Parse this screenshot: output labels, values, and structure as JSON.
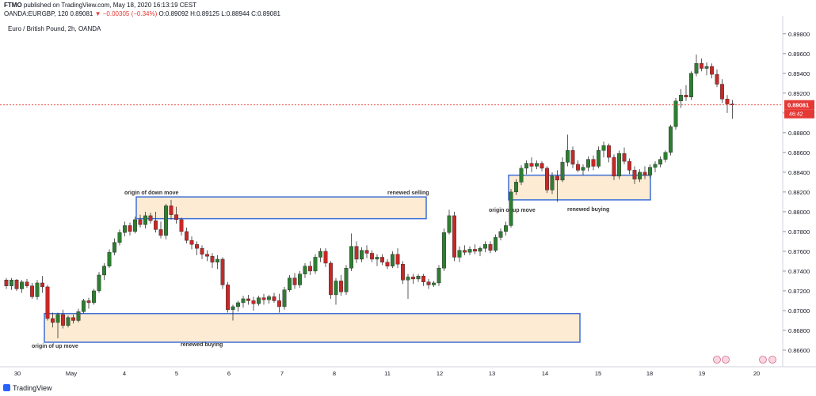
{
  "header": {
    "publisher": "FTMO",
    "published_text": "published on TradingView.com, May 18, 2020 16:13:19 CEST",
    "symbol": "OANDA:EURGBP, 120",
    "last": "0.89081",
    "change": "▼ −0.00305 (−0.34%)",
    "o": "O:0.89092",
    "h": "H:0.89125",
    "l": "L:0.88944",
    "c": "C:0.89081"
  },
  "pane_title": "Euro / British Pound, 2h, OANDA",
  "price_label": "0.89081",
  "countdown_label": "46:42",
  "logo_text": "TradingView",
  "colors": {
    "up": "#2e7d32",
    "down": "#c62828",
    "zone_fill": "#fdebd3",
    "zone_border": "#3d6fd6",
    "price_line": "#e53935"
  },
  "chart_data": {
    "type": "candlestick",
    "ylim": [
      0.8648,
      0.8995
    ],
    "y_ticks": [
      "0.86600",
      "0.86800",
      "0.87000",
      "0.87200",
      "0.87400",
      "0.87600",
      "0.87800",
      "0.88000",
      "0.88200",
      "0.88400",
      "0.88600",
      "0.88800",
      "0.89000",
      "0.89200",
      "0.89400",
      "0.89600",
      "0.89800"
    ],
    "x_ticks": [
      "30",
      "May",
      "4",
      "5",
      "6",
      "7",
      "8",
      "11",
      "12",
      "13",
      "14",
      "15",
      "18",
      "19",
      "20"
    ],
    "candles": [
      [
        0.8731,
        0.8733,
        0.8722,
        0.8725
      ],
      [
        0.8725,
        0.8733,
        0.8721,
        0.8731
      ],
      [
        0.8731,
        0.8732,
        0.872,
        0.8722
      ],
      [
        0.8722,
        0.8731,
        0.8718,
        0.8729
      ],
      [
        0.8729,
        0.8732,
        0.8723,
        0.8725
      ],
      [
        0.8725,
        0.8728,
        0.8712,
        0.8714
      ],
      [
        0.8714,
        0.8731,
        0.8711,
        0.8728
      ],
      [
        0.8728,
        0.8735,
        0.8718,
        0.8724
      ],
      [
        0.8724,
        0.8726,
        0.869,
        0.8692
      ],
      [
        0.8692,
        0.8698,
        0.8683,
        0.8688
      ],
      [
        0.8688,
        0.8698,
        0.8672,
        0.8696
      ],
      [
        0.8696,
        0.8701,
        0.8682,
        0.8685
      ],
      [
        0.8685,
        0.8695,
        0.8683,
        0.8693
      ],
      [
        0.8693,
        0.8696,
        0.8687,
        0.869
      ],
      [
        0.869,
        0.8702,
        0.8688,
        0.8699
      ],
      [
        0.8699,
        0.8712,
        0.8697,
        0.871
      ],
      [
        0.871,
        0.8713,
        0.8702,
        0.8708
      ],
      [
        0.8708,
        0.8722,
        0.8706,
        0.872
      ],
      [
        0.872,
        0.8739,
        0.8718,
        0.8736
      ],
      [
        0.8736,
        0.8748,
        0.8731,
        0.8745
      ],
      [
        0.8745,
        0.8762,
        0.8743,
        0.8759
      ],
      [
        0.8759,
        0.8773,
        0.8756,
        0.8769
      ],
      [
        0.8769,
        0.8782,
        0.8766,
        0.8779
      ],
      [
        0.8779,
        0.879,
        0.8775,
        0.8786
      ],
      [
        0.8786,
        0.8789,
        0.8776,
        0.878
      ],
      [
        0.878,
        0.8795,
        0.8778,
        0.8792
      ],
      [
        0.8792,
        0.8797,
        0.8784,
        0.8787
      ],
      [
        0.8787,
        0.88,
        0.8783,
        0.8796
      ],
      [
        0.8796,
        0.8799,
        0.8788,
        0.8791
      ],
      [
        0.8791,
        0.88,
        0.8779,
        0.8782
      ],
      [
        0.8782,
        0.879,
        0.8773,
        0.8776
      ],
      [
        0.8776,
        0.8808,
        0.8772,
        0.8806
      ],
      [
        0.8806,
        0.8812,
        0.8792,
        0.8797
      ],
      [
        0.8797,
        0.8805,
        0.8788,
        0.8792
      ],
      [
        0.8792,
        0.8794,
        0.8776,
        0.878
      ],
      [
        0.878,
        0.8784,
        0.8768,
        0.8771
      ],
      [
        0.8771,
        0.8775,
        0.8762,
        0.8767
      ],
      [
        0.8767,
        0.877,
        0.8756,
        0.8763
      ],
      [
        0.8763,
        0.8766,
        0.8752,
        0.8757
      ],
      [
        0.8757,
        0.8761,
        0.875,
        0.8755
      ],
      [
        0.8755,
        0.8758,
        0.8743,
        0.8749
      ],
      [
        0.8749,
        0.8756,
        0.8742,
        0.8752
      ],
      [
        0.8752,
        0.8754,
        0.8722,
        0.8726
      ],
      [
        0.8726,
        0.8729,
        0.8698,
        0.8701
      ],
      [
        0.8701,
        0.8706,
        0.869,
        0.8704
      ],
      [
        0.8704,
        0.871,
        0.8699,
        0.8708
      ],
      [
        0.8708,
        0.8715,
        0.8703,
        0.8712
      ],
      [
        0.8712,
        0.8716,
        0.8706,
        0.871
      ],
      [
        0.871,
        0.8714,
        0.87,
        0.8707
      ],
      [
        0.8707,
        0.8715,
        0.8705,
        0.8713
      ],
      [
        0.8713,
        0.8717,
        0.8706,
        0.8711
      ],
      [
        0.8711,
        0.8716,
        0.8707,
        0.8714
      ],
      [
        0.8714,
        0.8718,
        0.8708,
        0.871
      ],
      [
        0.871,
        0.8717,
        0.8698,
        0.8704
      ],
      [
        0.8704,
        0.8724,
        0.8701,
        0.8721
      ],
      [
        0.8721,
        0.8736,
        0.8719,
        0.8733
      ],
      [
        0.8733,
        0.8738,
        0.8722,
        0.8726
      ],
      [
        0.8726,
        0.874,
        0.8723,
        0.8737
      ],
      [
        0.8737,
        0.8748,
        0.8733,
        0.8745
      ],
      [
        0.8745,
        0.875,
        0.8736,
        0.874
      ],
      [
        0.874,
        0.8757,
        0.8737,
        0.8754
      ],
      [
        0.8754,
        0.8763,
        0.8749,
        0.876
      ],
      [
        0.876,
        0.8763,
        0.8744,
        0.8748
      ],
      [
        0.8748,
        0.875,
        0.8712,
        0.8716
      ],
      [
        0.8716,
        0.8733,
        0.8706,
        0.873
      ],
      [
        0.873,
        0.8736,
        0.8715,
        0.8719
      ],
      [
        0.8719,
        0.8746,
        0.8716,
        0.8743
      ],
      [
        0.8743,
        0.8778,
        0.874,
        0.8765
      ],
      [
        0.8765,
        0.877,
        0.8748,
        0.8752
      ],
      [
        0.8752,
        0.8764,
        0.8749,
        0.8761
      ],
      [
        0.8761,
        0.8766,
        0.8753,
        0.8758
      ],
      [
        0.8758,
        0.8761,
        0.8749,
        0.8752
      ],
      [
        0.8752,
        0.8757,
        0.8745,
        0.8754
      ],
      [
        0.8754,
        0.8757,
        0.8746,
        0.8749
      ],
      [
        0.8749,
        0.8752,
        0.8742,
        0.8745
      ],
      [
        0.8745,
        0.876,
        0.8743,
        0.8757
      ],
      [
        0.8757,
        0.8763,
        0.8743,
        0.8747
      ],
      [
        0.8747,
        0.875,
        0.8727,
        0.8731
      ],
      [
        0.8731,
        0.8737,
        0.8712,
        0.8734
      ],
      [
        0.8734,
        0.8737,
        0.8727,
        0.8732
      ],
      [
        0.8732,
        0.8737,
        0.8729,
        0.8735
      ],
      [
        0.8735,
        0.8737,
        0.8725,
        0.8729
      ],
      [
        0.8729,
        0.8732,
        0.8722,
        0.8726
      ],
      [
        0.8726,
        0.873,
        0.8724,
        0.8728
      ],
      [
        0.8728,
        0.8746,
        0.8725,
        0.8743
      ],
      [
        0.8743,
        0.8783,
        0.874,
        0.8779
      ],
      [
        0.8779,
        0.8802,
        0.8777,
        0.8796
      ],
      [
        0.8796,
        0.88,
        0.875,
        0.8754
      ],
      [
        0.8754,
        0.8765,
        0.8749,
        0.8761
      ],
      [
        0.8761,
        0.8766,
        0.8756,
        0.8759
      ],
      [
        0.8759,
        0.8765,
        0.8756,
        0.8762
      ],
      [
        0.8762,
        0.8767,
        0.8757,
        0.876
      ],
      [
        0.876,
        0.8765,
        0.8755,
        0.8763
      ],
      [
        0.8763,
        0.877,
        0.8759,
        0.8767
      ],
      [
        0.8767,
        0.877,
        0.8758,
        0.8761
      ],
      [
        0.8761,
        0.8777,
        0.8759,
        0.8774
      ],
      [
        0.8774,
        0.8783,
        0.8771,
        0.878
      ],
      [
        0.878,
        0.879,
        0.8776,
        0.8786
      ],
      [
        0.8786,
        0.8823,
        0.8784,
        0.882
      ],
      [
        0.882,
        0.8833,
        0.8817,
        0.883
      ],
      [
        0.883,
        0.8847,
        0.8827,
        0.8844
      ],
      [
        0.8844,
        0.8852,
        0.8838,
        0.8849
      ],
      [
        0.8849,
        0.8855,
        0.884,
        0.8846
      ],
      [
        0.8846,
        0.8852,
        0.8843,
        0.8849
      ],
      [
        0.8849,
        0.8851,
        0.8841,
        0.8844
      ],
      [
        0.8844,
        0.8846,
        0.8819,
        0.8822
      ],
      [
        0.8822,
        0.884,
        0.8818,
        0.8836
      ],
      [
        0.8836,
        0.8842,
        0.881,
        0.8832
      ],
      [
        0.8832,
        0.8855,
        0.883,
        0.885
      ],
      [
        0.885,
        0.8878,
        0.8846,
        0.8862
      ],
      [
        0.8862,
        0.8866,
        0.8844,
        0.8848
      ],
      [
        0.8848,
        0.8852,
        0.884,
        0.8842
      ],
      [
        0.8842,
        0.8848,
        0.8837,
        0.8845
      ],
      [
        0.8845,
        0.8856,
        0.8841,
        0.8853
      ],
      [
        0.8853,
        0.8857,
        0.8842,
        0.8846
      ],
      [
        0.8846,
        0.8866,
        0.8844,
        0.8862
      ],
      [
        0.8862,
        0.8871,
        0.8855,
        0.8867
      ],
      [
        0.8867,
        0.8869,
        0.885,
        0.8855
      ],
      [
        0.8855,
        0.8858,
        0.8832,
        0.8836
      ],
      [
        0.8836,
        0.8862,
        0.8833,
        0.8859
      ],
      [
        0.8859,
        0.8865,
        0.8848,
        0.8851
      ],
      [
        0.8851,
        0.8854,
        0.8838,
        0.8842
      ],
      [
        0.8842,
        0.8846,
        0.8828,
        0.8833
      ],
      [
        0.8833,
        0.8843,
        0.883,
        0.884
      ],
      [
        0.884,
        0.8846,
        0.8833,
        0.8837
      ],
      [
        0.8837,
        0.8848,
        0.8834,
        0.8845
      ],
      [
        0.8845,
        0.8851,
        0.884,
        0.8848
      ],
      [
        0.8848,
        0.8856,
        0.8845,
        0.8853
      ],
      [
        0.8853,
        0.8862,
        0.885,
        0.886
      ],
      [
        0.886,
        0.8888,
        0.8857,
        0.8886
      ],
      [
        0.8886,
        0.8915,
        0.8883,
        0.8912
      ],
      [
        0.8912,
        0.8924,
        0.8905,
        0.8918
      ],
      [
        0.8918,
        0.8928,
        0.8912,
        0.8916
      ],
      [
        0.8916,
        0.8942,
        0.8913,
        0.894
      ],
      [
        0.894,
        0.8959,
        0.8937,
        0.895
      ],
      [
        0.895,
        0.8955,
        0.8942,
        0.8945
      ],
      [
        0.8945,
        0.8951,
        0.8938,
        0.8947
      ],
      [
        0.8947,
        0.895,
        0.8935,
        0.8939
      ],
      [
        0.8939,
        0.8944,
        0.8926,
        0.8929
      ],
      [
        0.8929,
        0.8934,
        0.891,
        0.8914
      ],
      [
        0.8914,
        0.8918,
        0.89,
        0.8909
      ],
      [
        0.8909,
        0.8913,
        0.8894,
        0.8908
      ]
    ],
    "zones": [
      {
        "label": "origin of down move",
        "label2": "renewed selling",
        "y_top": 0.8815,
        "y_bottom": 0.8793
      },
      {
        "label": "origin of up move",
        "label2": "renewed buying",
        "y_top": 0.8697,
        "y_bottom": 0.8668
      },
      {
        "label": "origin of up move",
        "label2": "renewed buying",
        "y_top": 0.8837,
        "y_bottom": 0.8812
      }
    ],
    "current_price": 0.89081
  }
}
